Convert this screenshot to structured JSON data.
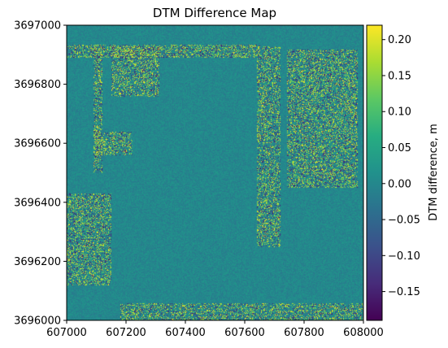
{
  "chart_data": {
    "type": "heatmap",
    "title": "DTM Difference Map",
    "xlabel": "",
    "ylabel": "",
    "xlim": [
      607000,
      608000
    ],
    "ylim": [
      3696000,
      3697000
    ],
    "x_ticks": [
      "607000",
      "607200",
      "607400",
      "607600",
      "607800",
      "608000"
    ],
    "x_tick_values": [
      607000,
      607200,
      607400,
      607600,
      607800,
      608000
    ],
    "y_ticks": [
      "3696000",
      "3696200",
      "3696400",
      "3696600",
      "3696800",
      "3697000"
    ],
    "y_tick_values": [
      3696000,
      3696200,
      3696400,
      3696600,
      3696800,
      3697000
    ],
    "colormap": "viridis",
    "colorbar": {
      "label": "DTM difference, m",
      "range": [
        -0.19,
        0.22
      ],
      "ticks": [
        "0.20",
        "0.15",
        "0.10",
        "0.05",
        "0.00",
        "−0.05",
        "−0.10",
        "−0.15"
      ],
      "tick_values": [
        0.2,
        0.15,
        0.1,
        0.05,
        0.0,
        -0.05,
        -0.1,
        -0.15
      ]
    },
    "background_value": 0.0,
    "regions": [
      {
        "name": "top-band",
        "x": [
          607000,
          607650
        ],
        "y": [
          3696890,
          3696935
        ],
        "noise": 0.08
      },
      {
        "name": "left-strip",
        "x": [
          607090,
          607120
        ],
        "y": [
          3696500,
          3696935
        ],
        "noise": 0.09
      },
      {
        "name": "upper-left-block",
        "x": [
          607150,
          607310
        ],
        "y": [
          3696760,
          3696930
        ],
        "noise": 0.08
      },
      {
        "name": "left-cluster-upper",
        "x": [
          607090,
          607220
        ],
        "y": [
          3696560,
          3696640
        ],
        "noise": 0.07
      },
      {
        "name": "left-cluster-lower",
        "x": [
          607000,
          607150
        ],
        "y": [
          3696120,
          3696430
        ],
        "noise": 0.08
      },
      {
        "name": "right-column-a",
        "x": [
          607640,
          607720
        ],
        "y": [
          3696250,
          3696930
        ],
        "noise": 0.08
      },
      {
        "name": "right-column-b",
        "x": [
          607740,
          607980
        ],
        "y": [
          3696450,
          3696920
        ],
        "noise": 0.09
      },
      {
        "name": "bottom-band",
        "x": [
          607180,
          608000
        ],
        "y": [
          3696000,
          3696060
        ],
        "noise": 0.05
      }
    ]
  }
}
